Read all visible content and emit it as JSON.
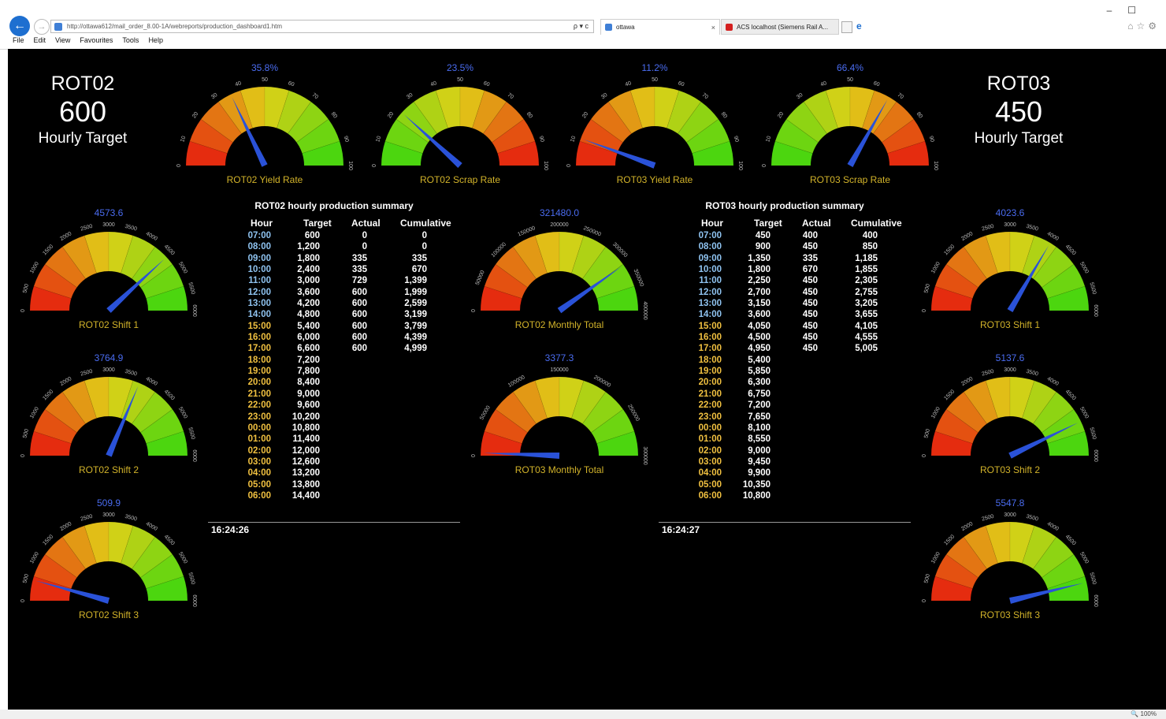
{
  "browser": {
    "url": "http://ottawa612/mail_order_8.00-1A/webreports/production_dashboard1.htm",
    "search_hint": "ρ ▾ c",
    "tab1_title": "ottawa",
    "tab2_title": "ACS localhost (Siemens Rail A...",
    "menu": [
      "File",
      "Edit",
      "View",
      "Favourites",
      "Tools",
      "Help"
    ],
    "zoom": "100%"
  },
  "targets": {
    "left": {
      "name": "ROT02",
      "value": "600",
      "label": "Hourly Target"
    },
    "right": {
      "name": "ROT03",
      "value": "450",
      "label": "Hourly Target"
    }
  },
  "gauges": [
    {
      "id": "rot02-yield",
      "label": "ROT02 Yield Rate",
      "value_text": "35.8%",
      "value": 35.8,
      "min": 0,
      "max": 100,
      "ticks": [
        "0",
        "10",
        "20",
        "30",
        "40",
        "50",
        "60",
        "70",
        "80",
        "90",
        "100"
      ],
      "direction": "red-to-green"
    },
    {
      "id": "rot02-scrap",
      "label": "ROT02 Scrap Rate",
      "value_text": "23.5%",
      "value": 23.5,
      "min": 0,
      "max": 100,
      "ticks": [
        "0",
        "10",
        "20",
        "30",
        "40",
        "50",
        "60",
        "70",
        "80",
        "90",
        "100"
      ],
      "direction": "green-to-red"
    },
    {
      "id": "rot03-yield",
      "label": "ROT03 Yield Rate",
      "value_text": "11.2%",
      "value": 11.2,
      "min": 0,
      "max": 100,
      "ticks": [
        "0",
        "10",
        "20",
        "30",
        "40",
        "50",
        "60",
        "70",
        "80",
        "90",
        "100"
      ],
      "direction": "red-to-green"
    },
    {
      "id": "rot03-scrap",
      "label": "ROT03 Scrap Rate",
      "value_text": "66.4%",
      "value": 66.4,
      "min": 0,
      "max": 100,
      "ticks": [
        "0",
        "10",
        "20",
        "30",
        "40",
        "50",
        "60",
        "70",
        "80",
        "90",
        "100"
      ],
      "direction": "green-to-red"
    },
    {
      "id": "rot02-shift1",
      "label": "ROT02 Shift 1",
      "value_text": "4573.6",
      "value": 4573.6,
      "min": 0,
      "max": 6000,
      "ticks": [
        "0",
        "500",
        "1000",
        "1500",
        "2000",
        "2500",
        "3000",
        "3500",
        "4000",
        "4500",
        "5000",
        "5500",
        "6000"
      ],
      "direction": "red-to-green"
    },
    {
      "id": "rot02-shift2",
      "label": "ROT02 Shift 2",
      "value_text": "3764.9",
      "value": 3764.9,
      "min": 0,
      "max": 6000,
      "ticks": [
        "0",
        "500",
        "1000",
        "1500",
        "2000",
        "2500",
        "3000",
        "3500",
        "4000",
        "4500",
        "5000",
        "5500",
        "6000"
      ],
      "direction": "red-to-green"
    },
    {
      "id": "rot02-shift3",
      "label": "ROT02 Shift 3",
      "value_text": "509.9",
      "value": 509.9,
      "min": 0,
      "max": 6000,
      "ticks": [
        "0",
        "500",
        "1000",
        "1500",
        "2000",
        "2500",
        "3000",
        "3500",
        "4000",
        "4500",
        "5000",
        "5500",
        "6000"
      ],
      "direction": "red-to-green"
    },
    {
      "id": "rot02-monthly",
      "label": "ROT02 Monthly Total",
      "value_text": "321480.0",
      "value": 321480,
      "min": 0,
      "max": 400000,
      "ticks": [
        "0",
        "50000",
        "100000",
        "150000",
        "200000",
        "250000",
        "300000",
        "350000",
        "400000"
      ],
      "direction": "red-to-green"
    },
    {
      "id": "rot03-monthly",
      "label": "ROT03 Monthly Total",
      "value_text": "3377.3",
      "value": 3377.3,
      "min": 0,
      "max": 300000,
      "ticks": [
        "0",
        "50000",
        "100000",
        "150000",
        "200000",
        "250000",
        "300000"
      ],
      "direction": "red-to-green"
    },
    {
      "id": "rot03-shift1",
      "label": "ROT03 Shift 1",
      "value_text": "4023.6",
      "value": 4023.6,
      "min": 0,
      "max": 6000,
      "ticks": [
        "0",
        "500",
        "1000",
        "1500",
        "2000",
        "2500",
        "3000",
        "3500",
        "4000",
        "4500",
        "5000",
        "5500",
        "6000"
      ],
      "direction": "red-to-green"
    },
    {
      "id": "rot03-shift2",
      "label": "ROT03 Shift 2",
      "value_text": "5137.6",
      "value": 5137.6,
      "min": 0,
      "max": 6000,
      "ticks": [
        "0",
        "500",
        "1000",
        "1500",
        "2000",
        "2500",
        "3000",
        "3500",
        "4000",
        "4500",
        "5000",
        "5500",
        "6000"
      ],
      "direction": "red-to-green"
    },
    {
      "id": "rot03-shift3",
      "label": "ROT03 Shift 3",
      "value_text": "5547.8",
      "value": 5547.8,
      "min": 0,
      "max": 6000,
      "ticks": [
        "0",
        "500",
        "1000",
        "1500",
        "2000",
        "2500",
        "3000",
        "3500",
        "4000",
        "4500",
        "5000",
        "5500",
        "6000"
      ],
      "direction": "red-to-green"
    }
  ],
  "summaries": [
    {
      "id": "rot02",
      "title": "ROT02 hourly production summary",
      "headers": [
        "Hour",
        "Target",
        "Actual",
        "Cumulative"
      ],
      "rows": [
        [
          "07:00",
          "600",
          "0",
          "0"
        ],
        [
          "08:00",
          "1,200",
          "0",
          "0"
        ],
        [
          "09:00",
          "1,800",
          "335",
          "335"
        ],
        [
          "10:00",
          "2,400",
          "335",
          "670"
        ],
        [
          "11:00",
          "3,000",
          "729",
          "1,399"
        ],
        [
          "12:00",
          "3,600",
          "600",
          "1,999"
        ],
        [
          "13:00",
          "4,200",
          "600",
          "2,599"
        ],
        [
          "14:00",
          "4,800",
          "600",
          "3,199"
        ],
        [
          "15:00",
          "5,400",
          "600",
          "3,799"
        ],
        [
          "16:00",
          "6,000",
          "600",
          "4,399"
        ],
        [
          "17:00",
          "6,600",
          "600",
          "4,999"
        ],
        [
          "18:00",
          "7,200",
          "",
          ""
        ],
        [
          "19:00",
          "7,800",
          "",
          ""
        ],
        [
          "20:00",
          "8,400",
          "",
          ""
        ],
        [
          "21:00",
          "9,000",
          "",
          ""
        ],
        [
          "22:00",
          "9,600",
          "",
          ""
        ],
        [
          "23:00",
          "10,200",
          "",
          ""
        ],
        [
          "00:00",
          "10,800",
          "",
          ""
        ],
        [
          "01:00",
          "11,400",
          "",
          ""
        ],
        [
          "02:00",
          "12,000",
          "",
          ""
        ],
        [
          "03:00",
          "12,600",
          "",
          ""
        ],
        [
          "04:00",
          "13,200",
          "",
          ""
        ],
        [
          "05:00",
          "13,800",
          "",
          ""
        ],
        [
          "06:00",
          "14,400",
          "",
          ""
        ]
      ],
      "timestamp": "16:24:26"
    },
    {
      "id": "rot03",
      "title": "ROT03 hourly production summary",
      "headers": [
        "Hour",
        "Target",
        "Actual",
        "Cumulative"
      ],
      "rows": [
        [
          "07:00",
          "450",
          "400",
          "400"
        ],
        [
          "08:00",
          "900",
          "450",
          "850"
        ],
        [
          "09:00",
          "1,350",
          "335",
          "1,185"
        ],
        [
          "10:00",
          "1,800",
          "670",
          "1,855"
        ],
        [
          "11:00",
          "2,250",
          "450",
          "2,305"
        ],
        [
          "12:00",
          "2,700",
          "450",
          "2,755"
        ],
        [
          "13:00",
          "3,150",
          "450",
          "3,205"
        ],
        [
          "14:00",
          "3,600",
          "450",
          "3,655"
        ],
        [
          "15:00",
          "4,050",
          "450",
          "4,105"
        ],
        [
          "16:00",
          "4,500",
          "450",
          "4,555"
        ],
        [
          "17:00",
          "4,950",
          "450",
          "5,005"
        ],
        [
          "18:00",
          "5,400",
          "",
          ""
        ],
        [
          "19:00",
          "5,850",
          "",
          ""
        ],
        [
          "20:00",
          "6,300",
          "",
          ""
        ],
        [
          "21:00",
          "6,750",
          "",
          ""
        ],
        [
          "22:00",
          "7,200",
          "",
          ""
        ],
        [
          "23:00",
          "7,650",
          "",
          ""
        ],
        [
          "00:00",
          "8,100",
          "",
          ""
        ],
        [
          "01:00",
          "8,550",
          "",
          ""
        ],
        [
          "02:00",
          "9,000",
          "",
          ""
        ],
        [
          "03:00",
          "9,450",
          "",
          ""
        ],
        [
          "04:00",
          "9,900",
          "",
          ""
        ],
        [
          "05:00",
          "10,350",
          "",
          ""
        ],
        [
          "06:00",
          "10,800",
          "",
          ""
        ]
      ],
      "timestamp": "16:24:27"
    }
  ],
  "colors": {
    "background": "#000000",
    "value_text": "#4a6cf0",
    "gauge_label": "#d2b32a",
    "needle": "#2a52d8",
    "hour_day": "#8fc3f0",
    "hour_night": "#f0c040",
    "gauge_red": "#e51a0e",
    "gauge_yellow": "#e0d018",
    "gauge_green": "#3cd70e"
  }
}
